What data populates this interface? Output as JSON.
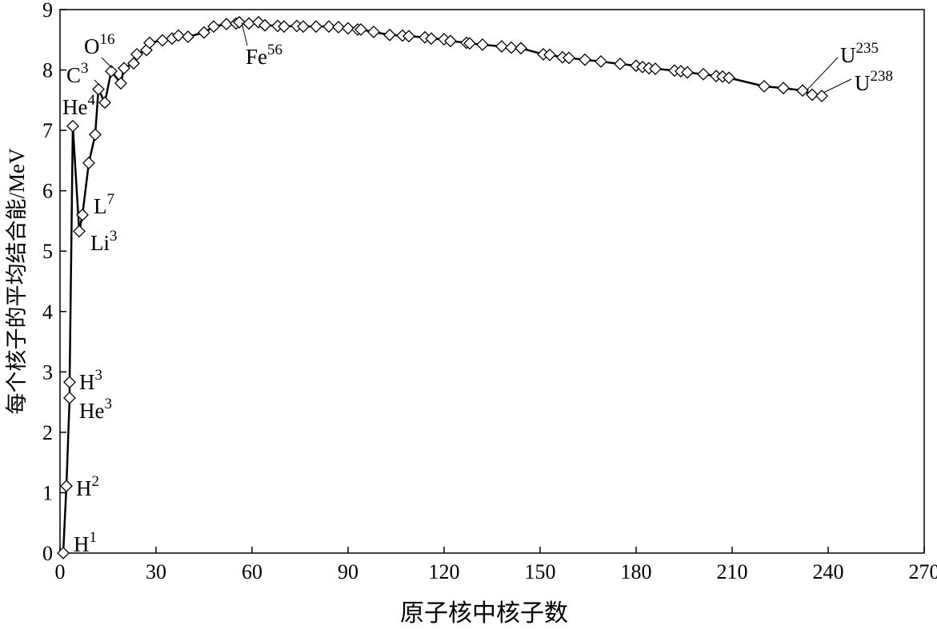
{
  "chart_data": {
    "type": "line",
    "x_label": "原子核中核子数",
    "y_label": "每个核子的平均结合能/MeV",
    "x": [
      1,
      2,
      3,
      3,
      4,
      6,
      7,
      9,
      11,
      12,
      14,
      16,
      19,
      20,
      23,
      24,
      27,
      28,
      32,
      35,
      37,
      40,
      45,
      48,
      52,
      55,
      56,
      59,
      62,
      64,
      68,
      70,
      74,
      76,
      80,
      84,
      87,
      90,
      93,
      94,
      98,
      103,
      107,
      109,
      114,
      116,
      120,
      122,
      127,
      128,
      132,
      138,
      141,
      144,
      151,
      153,
      157,
      159,
      164,
      169,
      175,
      180,
      182,
      184,
      186,
      192,
      194,
      196,
      201,
      205,
      207,
      209,
      220,
      226,
      232,
      235,
      238
    ],
    "values": [
      0,
      1.11,
      2.57,
      2.83,
      7.07,
      5.33,
      5.6,
      6.46,
      6.93,
      7.68,
      7.46,
      7.98,
      7.78,
      8.03,
      8.11,
      8.26,
      8.33,
      8.45,
      8.49,
      8.52,
      8.57,
      8.55,
      8.62,
      8.72,
      8.76,
      8.77,
      8.79,
      8.77,
      8.79,
      8.74,
      8.73,
      8.72,
      8.73,
      8.72,
      8.72,
      8.72,
      8.71,
      8.69,
      8.67,
      8.67,
      8.63,
      8.58,
      8.57,
      8.56,
      8.54,
      8.52,
      8.51,
      8.48,
      8.45,
      8.44,
      8.42,
      8.39,
      8.37,
      8.36,
      8.26,
      8.25,
      8.21,
      8.2,
      8.17,
      8.14,
      8.1,
      8.07,
      8.05,
      8.03,
      8.02,
      7.99,
      7.98,
      7.96,
      7.93,
      7.9,
      7.89,
      7.87,
      7.73,
      7.7,
      7.66,
      7.59,
      7.57
    ],
    "color": "#000000",
    "xlim": [
      0,
      270
    ],
    "xticks": [
      0,
      30,
      60,
      90,
      120,
      150,
      180,
      210,
      240,
      270
    ],
    "ylim": [
      0,
      9
    ],
    "yticks": [
      0,
      1,
      2,
      3,
      4,
      5,
      6,
      7,
      8,
      9
    ],
    "annotations": [
      {
        "text": "H",
        "sup": "1"
      },
      {
        "text": "H",
        "sup": "2"
      },
      {
        "text": "H",
        "sup": "3"
      },
      {
        "text": "He",
        "sup": "3"
      },
      {
        "text": "He",
        "sup": "4"
      },
      {
        "text": "L",
        "sup": "7"
      },
      {
        "text": "Li",
        "sup": "3"
      },
      {
        "text": "C",
        "sup": "3"
      },
      {
        "text": "O",
        "sup": "16"
      },
      {
        "text": "Fe",
        "sup": "56"
      },
      {
        "text": "U",
        "sup": "235"
      },
      {
        "text": "U",
        "sup": "238"
      }
    ]
  }
}
